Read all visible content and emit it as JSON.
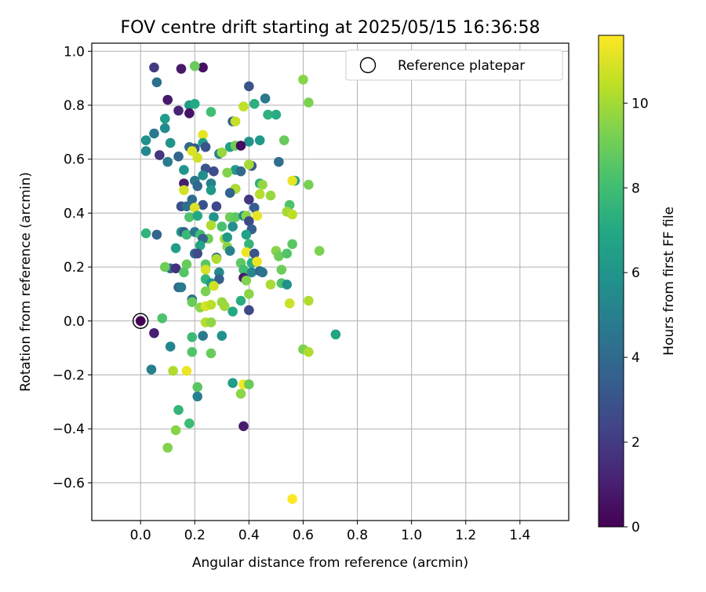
{
  "chart_data": {
    "type": "scatter",
    "title": "FOV centre drift starting at 2025/05/15 16:36:58",
    "xlabel": "Angular distance from reference (arcmin)",
    "ylabel": "Rotation from reference (arcmin)",
    "xlim": [
      -0.18,
      1.58
    ],
    "ylim": [
      -0.74,
      1.03
    ],
    "xticks": [
      "0.0",
      "0.2",
      "0.4",
      "0.6",
      "0.8",
      "1.0",
      "1.2",
      "1.4"
    ],
    "xtick_values": [
      0.0,
      0.2,
      0.4,
      0.6,
      0.8,
      1.0,
      1.2,
      1.4
    ],
    "yticks": [
      "−0.6",
      "−0.4",
      "−0.2",
      "0.0",
      "0.2",
      "0.4",
      "0.6",
      "0.8",
      "1.0"
    ],
    "ytick_values": [
      -0.6,
      -0.4,
      -0.2,
      0.0,
      0.2,
      0.4,
      0.6,
      0.8,
      1.0
    ],
    "grid": true,
    "legend": {
      "position": "top-right",
      "label": "Reference platepar"
    },
    "reference_point": {
      "x": 0.0,
      "y": 0.0
    },
    "colorbar": {
      "label": "Hours from first FF file",
      "min": 0,
      "max": 11.6,
      "ticks": [
        "0",
        "2",
        "4",
        "6",
        "8",
        "10"
      ],
      "tick_values": [
        0,
        2,
        4,
        6,
        8,
        10
      ],
      "colormap": "viridis"
    },
    "points": [
      {
        "x": 0.05,
        "y": 0.94,
        "h": 2.0
      },
      {
        "x": 0.15,
        "y": 0.935,
        "h": 0.8
      },
      {
        "x": 0.23,
        "y": 0.94,
        "h": 0.5
      },
      {
        "x": 0.2,
        "y": 0.945,
        "h": 8.9
      },
      {
        "x": 0.06,
        "y": 0.885,
        "h": 4.3
      },
      {
        "x": 0.4,
        "y": 0.87,
        "h": 3.0
      },
      {
        "x": 0.6,
        "y": 0.895,
        "h": 9.5
      },
      {
        "x": 0.1,
        "y": 0.82,
        "h": 0.8
      },
      {
        "x": 0.18,
        "y": 0.8,
        "h": 6.2
      },
      {
        "x": 0.2,
        "y": 0.805,
        "h": 7.0
      },
      {
        "x": 0.38,
        "y": 0.795,
        "h": 10.5
      },
      {
        "x": 0.42,
        "y": 0.805,
        "h": 7.3
      },
      {
        "x": 0.46,
        "y": 0.825,
        "h": 4.6
      },
      {
        "x": 0.62,
        "y": 0.81,
        "h": 9.3
      },
      {
        "x": 0.14,
        "y": 0.78,
        "h": 1.2
      },
      {
        "x": 0.18,
        "y": 0.77,
        "h": 0.6
      },
      {
        "x": 0.26,
        "y": 0.775,
        "h": 8.0
      },
      {
        "x": 0.47,
        "y": 0.765,
        "h": 7.4
      },
      {
        "x": 0.5,
        "y": 0.765,
        "h": 7.1
      },
      {
        "x": 0.09,
        "y": 0.75,
        "h": 6.4
      },
      {
        "x": 0.34,
        "y": 0.74,
        "h": 3.5
      },
      {
        "x": 0.35,
        "y": 0.74,
        "h": 10.6
      },
      {
        "x": 0.09,
        "y": 0.715,
        "h": 5.5
      },
      {
        "x": 0.05,
        "y": 0.695,
        "h": 4.7
      },
      {
        "x": 0.23,
        "y": 0.69,
        "h": 11.2
      },
      {
        "x": 0.02,
        "y": 0.67,
        "h": 5.8
      },
      {
        "x": 0.11,
        "y": 0.66,
        "h": 5.9
      },
      {
        "x": 0.23,
        "y": 0.66,
        "h": 6.3
      },
      {
        "x": 0.4,
        "y": 0.665,
        "h": 5.9
      },
      {
        "x": 0.44,
        "y": 0.67,
        "h": 6.2
      },
      {
        "x": 0.53,
        "y": 0.67,
        "h": 8.9
      },
      {
        "x": 0.18,
        "y": 0.645,
        "h": 4.0
      },
      {
        "x": 0.2,
        "y": 0.64,
        "h": 3.3
      },
      {
        "x": 0.24,
        "y": 0.645,
        "h": 2.9
      },
      {
        "x": 0.33,
        "y": 0.645,
        "h": 6.5
      },
      {
        "x": 0.35,
        "y": 0.65,
        "h": 9.1
      },
      {
        "x": 0.37,
        "y": 0.65,
        "h": 0.4
      },
      {
        "x": 0.02,
        "y": 0.63,
        "h": 5.4
      },
      {
        "x": 0.19,
        "y": 0.63,
        "h": 11.0
      },
      {
        "x": 0.14,
        "y": 0.61,
        "h": 3.7
      },
      {
        "x": 0.21,
        "y": 0.605,
        "h": 10.8
      },
      {
        "x": 0.29,
        "y": 0.62,
        "h": 5.1
      },
      {
        "x": 0.3,
        "y": 0.625,
        "h": 9.8
      },
      {
        "x": 0.07,
        "y": 0.615,
        "h": 1.8
      },
      {
        "x": 0.1,
        "y": 0.59,
        "h": 4.8
      },
      {
        "x": 0.51,
        "y": 0.59,
        "h": 4.2
      },
      {
        "x": 0.41,
        "y": 0.575,
        "h": 3.2
      },
      {
        "x": 0.4,
        "y": 0.58,
        "h": 10.0
      },
      {
        "x": 0.16,
        "y": 0.56,
        "h": 6.0
      },
      {
        "x": 0.24,
        "y": 0.565,
        "h": 3.1
      },
      {
        "x": 0.27,
        "y": 0.555,
        "h": 2.7
      },
      {
        "x": 0.35,
        "y": 0.56,
        "h": 6.3
      },
      {
        "x": 0.37,
        "y": 0.555,
        "h": 3.9
      },
      {
        "x": 0.32,
        "y": 0.55,
        "h": 9.4
      },
      {
        "x": 0.23,
        "y": 0.54,
        "h": 5.6
      },
      {
        "x": 0.57,
        "y": 0.52,
        "h": 6.9
      },
      {
        "x": 0.56,
        "y": 0.52,
        "h": 11.2
      },
      {
        "x": 0.2,
        "y": 0.52,
        "h": 4.6
      },
      {
        "x": 0.16,
        "y": 0.51,
        "h": 1.0
      },
      {
        "x": 0.44,
        "y": 0.51,
        "h": 7.3
      },
      {
        "x": 0.45,
        "y": 0.505,
        "h": 9.7
      },
      {
        "x": 0.62,
        "y": 0.505,
        "h": 9.2
      },
      {
        "x": 0.21,
        "y": 0.5,
        "h": 3.8
      },
      {
        "x": 0.26,
        "y": 0.51,
        "h": 5.0
      },
      {
        "x": 0.35,
        "y": 0.49,
        "h": 4.4
      },
      {
        "x": 0.35,
        "y": 0.49,
        "h": 10.2
      },
      {
        "x": 0.16,
        "y": 0.485,
        "h": 10.8
      },
      {
        "x": 0.26,
        "y": 0.485,
        "h": 6.1
      },
      {
        "x": 0.33,
        "y": 0.475,
        "h": 3.7
      },
      {
        "x": 0.44,
        "y": 0.47,
        "h": 10.3
      },
      {
        "x": 0.48,
        "y": 0.465,
        "h": 9.8
      },
      {
        "x": 0.4,
        "y": 0.45,
        "h": 1.9
      },
      {
        "x": 0.19,
        "y": 0.45,
        "h": 4.0
      },
      {
        "x": 0.23,
        "y": 0.43,
        "h": 3.0
      },
      {
        "x": 0.15,
        "y": 0.425,
        "h": 2.8
      },
      {
        "x": 0.17,
        "y": 0.425,
        "h": 4.2
      },
      {
        "x": 0.2,
        "y": 0.42,
        "h": 11.0
      },
      {
        "x": 0.28,
        "y": 0.425,
        "h": 2.5
      },
      {
        "x": 0.42,
        "y": 0.42,
        "h": 3.4
      },
      {
        "x": 0.55,
        "y": 0.43,
        "h": 8.3
      },
      {
        "x": 0.54,
        "y": 0.405,
        "h": 10.0
      },
      {
        "x": 0.56,
        "y": 0.395,
        "h": 10.4
      },
      {
        "x": 0.18,
        "y": 0.385,
        "h": 8.4
      },
      {
        "x": 0.21,
        "y": 0.39,
        "h": 6.9
      },
      {
        "x": 0.27,
        "y": 0.385,
        "h": 6.0
      },
      {
        "x": 0.33,
        "y": 0.385,
        "h": 9.0
      },
      {
        "x": 0.35,
        "y": 0.385,
        "h": 8.7
      },
      {
        "x": 0.38,
        "y": 0.39,
        "h": 5.4
      },
      {
        "x": 0.39,
        "y": 0.39,
        "h": 9.6
      },
      {
        "x": 0.43,
        "y": 0.39,
        "h": 11.2
      },
      {
        "x": 0.4,
        "y": 0.37,
        "h": 2.5
      },
      {
        "x": 0.26,
        "y": 0.355,
        "h": 10.2
      },
      {
        "x": 0.3,
        "y": 0.35,
        "h": 8.2
      },
      {
        "x": 0.34,
        "y": 0.35,
        "h": 5.7
      },
      {
        "x": 0.41,
        "y": 0.34,
        "h": 3.4
      },
      {
        "x": 0.15,
        "y": 0.33,
        "h": 6.1
      },
      {
        "x": 0.16,
        "y": 0.33,
        "h": 3.4
      },
      {
        "x": 0.17,
        "y": 0.32,
        "h": 7.8
      },
      {
        "x": 0.2,
        "y": 0.33,
        "h": 4.6
      },
      {
        "x": 0.22,
        "y": 0.32,
        "h": 8.0
      },
      {
        "x": 0.02,
        "y": 0.325,
        "h": 7.5
      },
      {
        "x": 0.06,
        "y": 0.32,
        "h": 3.7
      },
      {
        "x": 0.25,
        "y": 0.305,
        "h": 9.0
      },
      {
        "x": 0.31,
        "y": 0.305,
        "h": 9.9
      },
      {
        "x": 0.32,
        "y": 0.31,
        "h": 6.2
      },
      {
        "x": 0.39,
        "y": 0.32,
        "h": 6.6
      },
      {
        "x": 0.23,
        "y": 0.305,
        "h": 3.7
      },
      {
        "x": 0.4,
        "y": 0.285,
        "h": 7.6
      },
      {
        "x": 0.22,
        "y": 0.28,
        "h": 6.8
      },
      {
        "x": 0.32,
        "y": 0.275,
        "h": 9.5
      },
      {
        "x": 0.56,
        "y": 0.285,
        "h": 8.6
      },
      {
        "x": 0.13,
        "y": 0.27,
        "h": 6.4
      },
      {
        "x": 0.33,
        "y": 0.26,
        "h": 5.0
      },
      {
        "x": 0.2,
        "y": 0.25,
        "h": 4.0
      },
      {
        "x": 0.21,
        "y": 0.25,
        "h": 2.6
      },
      {
        "x": 0.39,
        "y": 0.255,
        "h": 11.3
      },
      {
        "x": 0.42,
        "y": 0.25,
        "h": 3.0
      },
      {
        "x": 0.5,
        "y": 0.26,
        "h": 9.5
      },
      {
        "x": 0.51,
        "y": 0.24,
        "h": 9.0
      },
      {
        "x": 0.54,
        "y": 0.25,
        "h": 8.4
      },
      {
        "x": 0.66,
        "y": 0.26,
        "h": 9.3
      },
      {
        "x": 0.28,
        "y": 0.235,
        "h": 3.8
      },
      {
        "x": 0.28,
        "y": 0.23,
        "h": 10.2
      },
      {
        "x": 0.24,
        "y": 0.21,
        "h": 8.6
      },
      {
        "x": 0.17,
        "y": 0.21,
        "h": 8.9
      },
      {
        "x": 0.37,
        "y": 0.215,
        "h": 8.7
      },
      {
        "x": 0.41,
        "y": 0.215,
        "h": 7.3
      },
      {
        "x": 0.43,
        "y": 0.22,
        "h": 11.3
      },
      {
        "x": 0.11,
        "y": 0.195,
        "h": 4.1
      },
      {
        "x": 0.13,
        "y": 0.195,
        "h": 1.6
      },
      {
        "x": 0.09,
        "y": 0.2,
        "h": 9.0
      },
      {
        "x": 0.16,
        "y": 0.18,
        "h": 8.5
      },
      {
        "x": 0.24,
        "y": 0.19,
        "h": 10.9
      },
      {
        "x": 0.29,
        "y": 0.18,
        "h": 5.4
      },
      {
        "x": 0.38,
        "y": 0.19,
        "h": 8.0
      },
      {
        "x": 0.41,
        "y": 0.18,
        "h": 5.3
      },
      {
        "x": 0.44,
        "y": 0.185,
        "h": 3.9
      },
      {
        "x": 0.45,
        "y": 0.18,
        "h": 4.4
      },
      {
        "x": 0.52,
        "y": 0.19,
        "h": 9.0
      },
      {
        "x": 0.38,
        "y": 0.16,
        "h": 0.8
      },
      {
        "x": 0.39,
        "y": 0.15,
        "h": 9.4
      },
      {
        "x": 0.24,
        "y": 0.155,
        "h": 7.6
      },
      {
        "x": 0.29,
        "y": 0.155,
        "h": 3.5
      },
      {
        "x": 0.14,
        "y": 0.125,
        "h": 3.8
      },
      {
        "x": 0.15,
        "y": 0.125,
        "h": 4.7
      },
      {
        "x": 0.26,
        "y": 0.14,
        "h": 6.2
      },
      {
        "x": 0.27,
        "y": 0.13,
        "h": 10.8
      },
      {
        "x": 0.48,
        "y": 0.135,
        "h": 10.1
      },
      {
        "x": 0.52,
        "y": 0.14,
        "h": 8.4
      },
      {
        "x": 0.54,
        "y": 0.135,
        "h": 5.8
      },
      {
        "x": 0.24,
        "y": 0.11,
        "h": 9.3
      },
      {
        "x": 0.4,
        "y": 0.1,
        "h": 9.6
      },
      {
        "x": 0.19,
        "y": 0.08,
        "h": 4.3
      },
      {
        "x": 0.19,
        "y": 0.07,
        "h": 8.9
      },
      {
        "x": 0.3,
        "y": 0.07,
        "h": 9.8
      },
      {
        "x": 0.37,
        "y": 0.075,
        "h": 7.2
      },
      {
        "x": 0.22,
        "y": 0.05,
        "h": 9.6
      },
      {
        "x": 0.24,
        "y": 0.055,
        "h": 10.9
      },
      {
        "x": 0.26,
        "y": 0.06,
        "h": 10.4
      },
      {
        "x": 0.31,
        "y": 0.055,
        "h": 9.9
      },
      {
        "x": 0.4,
        "y": 0.04,
        "h": 2.5
      },
      {
        "x": 0.34,
        "y": 0.035,
        "h": 7.0
      },
      {
        "x": 0.55,
        "y": 0.065,
        "h": 10.7
      },
      {
        "x": 0.62,
        "y": 0.075,
        "h": 10.2
      },
      {
        "x": 0.08,
        "y": 0.01,
        "h": 8.3
      },
      {
        "x": 0.24,
        "y": -0.005,
        "h": 10.3
      },
      {
        "x": 0.26,
        "y": -0.005,
        "h": 9.7
      },
      {
        "x": 0.05,
        "y": -0.045,
        "h": 1.0
      },
      {
        "x": 0.23,
        "y": -0.055,
        "h": 4.7
      },
      {
        "x": 0.3,
        "y": -0.055,
        "h": 5.9
      },
      {
        "x": 0.19,
        "y": -0.06,
        "h": 7.8
      },
      {
        "x": 0.72,
        "y": -0.05,
        "h": 6.8
      },
      {
        "x": 0.11,
        "y": -0.095,
        "h": 5.3
      },
      {
        "x": 0.6,
        "y": -0.105,
        "h": 9.3
      },
      {
        "x": 0.62,
        "y": -0.115,
        "h": 10.2
      },
      {
        "x": 0.19,
        "y": -0.115,
        "h": 8.4
      },
      {
        "x": 0.26,
        "y": -0.12,
        "h": 8.9
      },
      {
        "x": 0.04,
        "y": -0.18,
        "h": 5.0
      },
      {
        "x": 0.12,
        "y": -0.185,
        "h": 10.2
      },
      {
        "x": 0.17,
        "y": -0.185,
        "h": 11.3
      },
      {
        "x": 0.34,
        "y": -0.23,
        "h": 6.4
      },
      {
        "x": 0.38,
        "y": -0.235,
        "h": 11.4
      },
      {
        "x": 0.4,
        "y": -0.235,
        "h": 8.9
      },
      {
        "x": 0.21,
        "y": -0.245,
        "h": 8.6
      },
      {
        "x": 0.37,
        "y": -0.27,
        "h": 9.6
      },
      {
        "x": 0.21,
        "y": -0.28,
        "h": 5.0
      },
      {
        "x": 0.14,
        "y": -0.33,
        "h": 7.6
      },
      {
        "x": 0.18,
        "y": -0.38,
        "h": 7.9
      },
      {
        "x": 0.38,
        "y": -0.39,
        "h": 0.9
      },
      {
        "x": 0.13,
        "y": -0.405,
        "h": 9.5
      },
      {
        "x": 0.1,
        "y": -0.47,
        "h": 9.4
      },
      {
        "x": 0.56,
        "y": -0.66,
        "h": 11.6
      }
    ]
  }
}
